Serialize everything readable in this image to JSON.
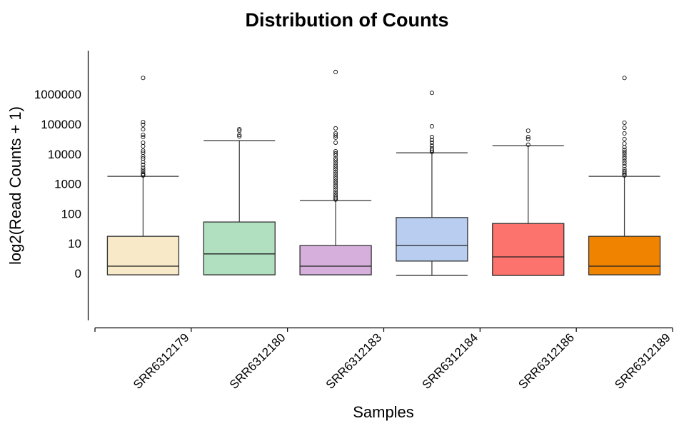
{
  "chart_data": {
    "type": "box",
    "title": "Distribution of Counts",
    "xlabel": "Samples",
    "ylabel": "log2(Read Counts + 1)",
    "y_scale": "log10 of (count + 1), ticks labeled in raw counts",
    "ylim": [
      -1.6,
      7.3
    ],
    "y_ticks": [
      {
        "value": 0,
        "label": "0"
      },
      {
        "value": 1,
        "label": "10"
      },
      {
        "value": 2,
        "label": "100"
      },
      {
        "value": 3,
        "label": "1000"
      },
      {
        "value": 4,
        "label": "10000"
      },
      {
        "value": 5,
        "label": "100000"
      },
      {
        "value": 6,
        "label": "1000000"
      }
    ],
    "grid": false,
    "legend": "none",
    "categories": [
      "SRR6312179",
      "SRR6312180",
      "SRR6312183",
      "SRR6312184",
      "SRR6312186",
      "SRR6312189"
    ],
    "series": [
      {
        "name": "SRR6312179",
        "color": "#f8eac8",
        "whisker_low": -0.05,
        "q1": -0.05,
        "median": 0.24,
        "q3": 1.24,
        "whisker_high": 3.25,
        "outliers": [
          6.55,
          5.07,
          4.98,
          4.83,
          4.64,
          4.57,
          4.38,
          4.26,
          4.11,
          4.04,
          3.92,
          3.85,
          3.73,
          3.64,
          3.54,
          3.47,
          3.4,
          3.33,
          3.3,
          3.28
        ]
      },
      {
        "name": "SRR6312180",
        "color": "#b0e0bf",
        "whisker_low": -0.05,
        "q1": -0.05,
        "median": 0.65,
        "q3": 1.72,
        "whisker_high": 4.45,
        "outliers": [
          4.83,
          4.78,
          4.64,
          4.59
        ]
      },
      {
        "name": "SRR6312183",
        "color": "#d6afdc",
        "whisker_low": -0.05,
        "q1": -0.05,
        "median": 0.24,
        "q3": 0.93,
        "whisker_high": 2.44,
        "outliers": [
          6.75,
          4.86,
          4.69,
          4.62,
          4.55,
          4.38,
          4.09,
          4.02,
          3.95,
          3.85,
          3.78,
          3.7,
          3.62,
          3.55,
          3.48,
          3.4,
          3.33,
          3.25,
          3.18,
          3.1,
          3.03,
          2.95,
          2.88,
          2.8,
          2.72,
          2.65,
          2.58,
          2.52,
          2.47
        ]
      },
      {
        "name": "SRR6312184",
        "color": "#b8cdf0",
        "whisker_low": -0.07,
        "q1": 0.41,
        "median": 0.93,
        "q3": 1.87,
        "whisker_high": 4.04,
        "outliers": [
          6.05,
          4.93,
          4.57,
          4.47,
          4.38,
          4.28,
          4.19,
          4.12,
          4.07
        ]
      },
      {
        "name": "SRR6312186",
        "color": "#fc726c",
        "whisker_low": -0.07,
        "q1": -0.07,
        "median": 0.55,
        "q3": 1.67,
        "whisker_high": 4.28,
        "outliers": [
          4.78,
          4.57,
          4.5,
          4.31
        ]
      },
      {
        "name": "SRR6312189",
        "color": "#f08400",
        "whisker_low": -0.05,
        "q1": -0.05,
        "median": 0.24,
        "q3": 1.24,
        "whisker_high": 3.25,
        "outliers": [
          6.55,
          5.05,
          4.88,
          4.69,
          4.5,
          4.35,
          4.23,
          4.14,
          4.07,
          4.0,
          3.92,
          3.85,
          3.76,
          3.68,
          3.59,
          3.49,
          3.42,
          3.36,
          3.31,
          3.28
        ]
      }
    ]
  }
}
